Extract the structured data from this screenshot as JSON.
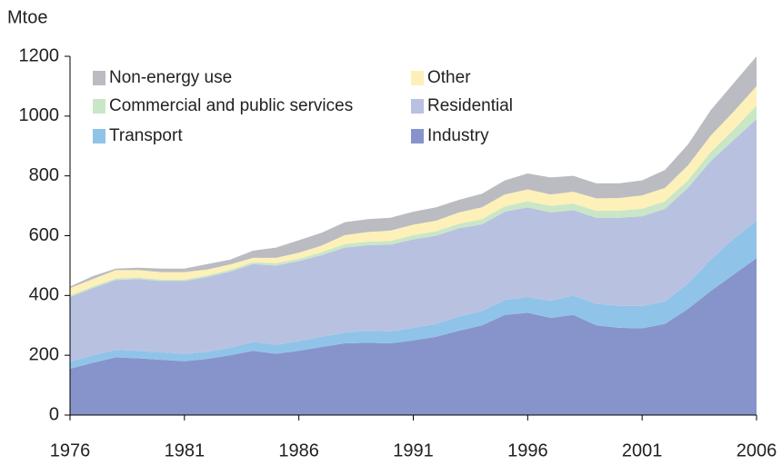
{
  "chart_data": {
    "type": "stacked_area",
    "y_label": "Mtoe",
    "x": [
      1976,
      1977,
      1978,
      1979,
      1980,
      1981,
      1982,
      1983,
      1984,
      1985,
      1986,
      1987,
      1988,
      1989,
      1990,
      1991,
      1992,
      1993,
      1994,
      1995,
      1996,
      1997,
      1998,
      1999,
      2000,
      2001,
      2002,
      2003,
      2004,
      2005,
      2006
    ],
    "xlim": [
      1976,
      2006
    ],
    "xticks": [
      1976,
      1981,
      1986,
      1991,
      1996,
      2001,
      2006
    ],
    "ylim": [
      0,
      1200
    ],
    "yticks": [
      0,
      200,
      400,
      600,
      800,
      1000,
      1200
    ],
    "series": [
      {
        "name": "Industry",
        "color": "#8794cb",
        "values": [
          155,
          175,
          193,
          190,
          185,
          180,
          188,
          200,
          215,
          205,
          215,
          228,
          240,
          242,
          240,
          250,
          262,
          282,
          300,
          335,
          342,
          325,
          335,
          300,
          292,
          290,
          305,
          355,
          415,
          470,
          525
        ]
      },
      {
        "name": "Transport",
        "color": "#8fc4e8",
        "values": [
          23,
          25,
          25,
          25,
          25,
          25,
          24,
          25,
          30,
          30,
          33,
          34,
          35,
          40,
          40,
          42,
          43,
          48,
          48,
          50,
          53,
          57,
          65,
          72,
          73,
          75,
          75,
          85,
          105,
          120,
          125
        ]
      },
      {
        "name": "Residential",
        "color": "#b9c1e1",
        "values": [
          217,
          225,
          234,
          240,
          238,
          243,
          250,
          255,
          260,
          265,
          267,
          273,
          285,
          286,
          290,
          296,
          295,
          295,
          290,
          295,
          300,
          296,
          285,
          288,
          295,
          300,
          310,
          320,
          330,
          330,
          340
        ]
      },
      {
        "name": "Commercial and public services",
        "color": "#c9e7c6",
        "values": [
          5,
          5,
          5,
          5,
          5,
          5,
          5,
          6,
          6,
          8,
          8,
          10,
          12,
          12,
          12,
          14,
          15,
          15,
          17,
          18,
          20,
          22,
          22,
          23,
          24,
          25,
          25,
          25,
          30,
          35,
          45
        ]
      },
      {
        "name": "Other",
        "color": "#fdf0b9",
        "values": [
          25,
          25,
          28,
          25,
          25,
          25,
          20,
          18,
          15,
          18,
          20,
          22,
          30,
          32,
          35,
          35,
          35,
          38,
          40,
          40,
          40,
          38,
          40,
          42,
          42,
          45,
          45,
          50,
          55,
          60,
          65
        ]
      },
      {
        "name": "Non-energy use",
        "color": "#babcc1",
        "values": [
          5,
          10,
          5,
          8,
          12,
          12,
          18,
          16,
          24,
          34,
          42,
          43,
          43,
          43,
          43,
          43,
          45,
          42,
          45,
          47,
          53,
          57,
          53,
          50,
          49,
          50,
          60,
          70,
          85,
          95,
          100
        ]
      }
    ]
  }
}
